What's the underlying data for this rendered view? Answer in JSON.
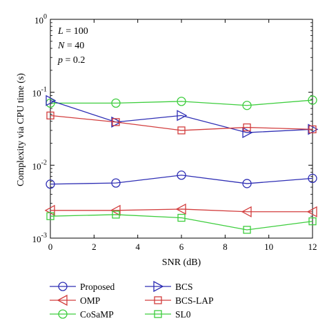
{
  "chart_data": {
    "type": "line",
    "xlabel": "SNR (dB)",
    "ylabel": "Complexity via CPU time (s)",
    "yscale": "log",
    "xlim": [
      0,
      12
    ],
    "ylim": [
      0.001,
      1
    ],
    "x": [
      0,
      3,
      6,
      9,
      12
    ],
    "x_ticks": [
      "0",
      "2",
      "4",
      "6",
      "8",
      "10",
      "12"
    ],
    "y_ticks": [
      {
        "base": "10",
        "exp": "0"
      },
      {
        "base": "10",
        "exp": "-1"
      },
      {
        "base": "10",
        "exp": "-2"
      },
      {
        "base": "10",
        "exp": "-3"
      }
    ],
    "params": [
      {
        "var": "L",
        "value": " = 100"
      },
      {
        "var": "N",
        "value": " = 40"
      },
      {
        "var": "p",
        "value": " = 0.2"
      }
    ],
    "grid": false,
    "legend_position": "below",
    "series": [
      {
        "name": "Proposed",
        "color": "#2d2db4",
        "marker": "circle",
        "values": [
          0.0055,
          0.0057,
          0.0073,
          0.0056,
          0.0066
        ]
      },
      {
        "name": "OMP",
        "color": "#d23c3c",
        "marker": "triangle-left",
        "values": [
          0.0024,
          0.0024,
          0.0025,
          0.0023,
          0.0023
        ]
      },
      {
        "name": "CoSaMP",
        "color": "#3ccd3c",
        "marker": "circle",
        "values": [
          0.071,
          0.071,
          0.075,
          0.066,
          0.078
        ]
      },
      {
        "name": "BCS",
        "color": "#2d2db4",
        "marker": "triangle-right",
        "values": [
          0.077,
          0.039,
          0.048,
          0.028,
          0.031
        ]
      },
      {
        "name": "BCS-LAP",
        "color": "#d23c3c",
        "marker": "square",
        "values": [
          0.048,
          0.039,
          0.03,
          0.033,
          0.031
        ]
      },
      {
        "name": "SL0",
        "color": "#3ccd3c",
        "marker": "square",
        "values": [
          0.002,
          0.0021,
          0.0019,
          0.0013,
          0.0017
        ]
      }
    ]
  }
}
